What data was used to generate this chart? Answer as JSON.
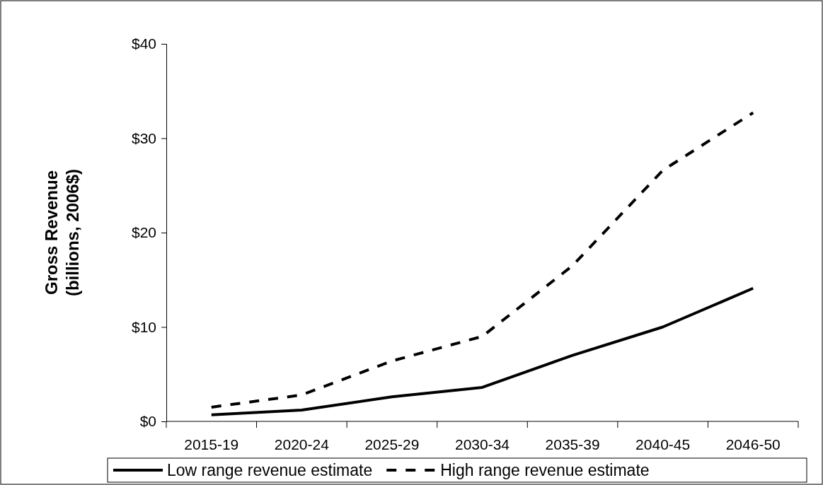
{
  "chart_data": {
    "type": "line",
    "ylabel": "Gross Revenue\n(billions, 2006$)",
    "categories": [
      "2015-19",
      "2020-24",
      "2025-29",
      "2030-34",
      "2035-39",
      "2040-45",
      "2046-50"
    ],
    "series": [
      {
        "name": "Low range revenue estimate",
        "color": "#000000",
        "line_style": "solid",
        "values": [
          0.7,
          1.2,
          2.6,
          3.6,
          7.0,
          10.0,
          14.1
        ]
      },
      {
        "name": "High range revenue estimate",
        "color": "#000000",
        "line_style": "dashed",
        "values": [
          1.5,
          2.8,
          6.4,
          9.0,
          16.5,
          26.6,
          32.7
        ]
      }
    ],
    "ylim": [
      0,
      40
    ],
    "yticks": [
      {
        "value": 0,
        "label": "$0"
      },
      {
        "value": 10,
        "label": "$10"
      },
      {
        "value": 20,
        "label": "$20"
      },
      {
        "value": 30,
        "label": "$30"
      },
      {
        "value": 40,
        "label": "$40"
      }
    ],
    "grid": false,
    "legend": "bottom",
    "marker": "none"
  }
}
